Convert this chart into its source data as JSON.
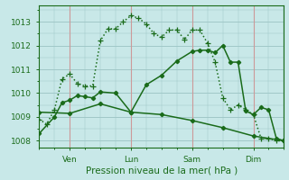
{
  "xlabel": "Pression niveau de la mer( hPa )",
  "background_color": "#c8e8e8",
  "grid_color": "#a0c8c8",
  "line_color": "#1a6b1a",
  "vline_color": "#cc9999",
  "xlim": [
    0,
    96
  ],
  "ylim": [
    1007.7,
    1013.7
  ],
  "yticks": [
    1008,
    1009,
    1010,
    1011,
    1012,
    1013
  ],
  "xtick_positions": [
    12,
    36,
    60,
    84
  ],
  "xtick_labels": [
    "Ven",
    "Lun",
    "Sam",
    "Dim"
  ],
  "series1_x": [
    0,
    3,
    6,
    9,
    12,
    15,
    18,
    21,
    24,
    27,
    30,
    33,
    36,
    39,
    42,
    45,
    48,
    51,
    54,
    57,
    60,
    63,
    66,
    69,
    72,
    75,
    78,
    81,
    84,
    87,
    90,
    93,
    96
  ],
  "series1_y": [
    1008.9,
    1008.7,
    1009.3,
    1010.6,
    1010.8,
    1010.4,
    1010.3,
    1010.3,
    1012.2,
    1012.7,
    1012.7,
    1013.0,
    1013.25,
    1013.15,
    1012.9,
    1012.5,
    1012.35,
    1012.65,
    1012.65,
    1012.25,
    1012.65,
    1012.65,
    1012.1,
    1011.3,
    1009.8,
    1009.3,
    1009.5,
    1009.3,
    1009.1,
    1008.1,
    1008.1,
    1008.0,
    1008.0
  ],
  "series2_x": [
    0,
    6,
    9,
    12,
    15,
    18,
    21,
    24,
    30,
    36,
    42,
    48,
    54,
    60,
    63,
    66,
    69,
    72,
    75,
    78,
    81,
    84,
    87,
    90,
    93,
    96
  ],
  "series2_y": [
    1008.3,
    1009.0,
    1009.6,
    1009.7,
    1009.9,
    1009.85,
    1009.8,
    1010.05,
    1010.0,
    1009.2,
    1010.35,
    1010.75,
    1011.35,
    1011.75,
    1011.8,
    1011.8,
    1011.7,
    1012.0,
    1011.3,
    1011.3,
    1009.25,
    1009.1,
    1009.4,
    1009.3,
    1008.1,
    1008.0
  ],
  "series3_x": [
    0,
    12,
    24,
    36,
    48,
    60,
    72,
    84,
    96
  ],
  "series3_y": [
    1009.2,
    1009.15,
    1009.55,
    1009.2,
    1009.1,
    1008.85,
    1008.55,
    1008.2,
    1008.0
  ],
  "marker_size": 3.0,
  "line_width": 1.1
}
